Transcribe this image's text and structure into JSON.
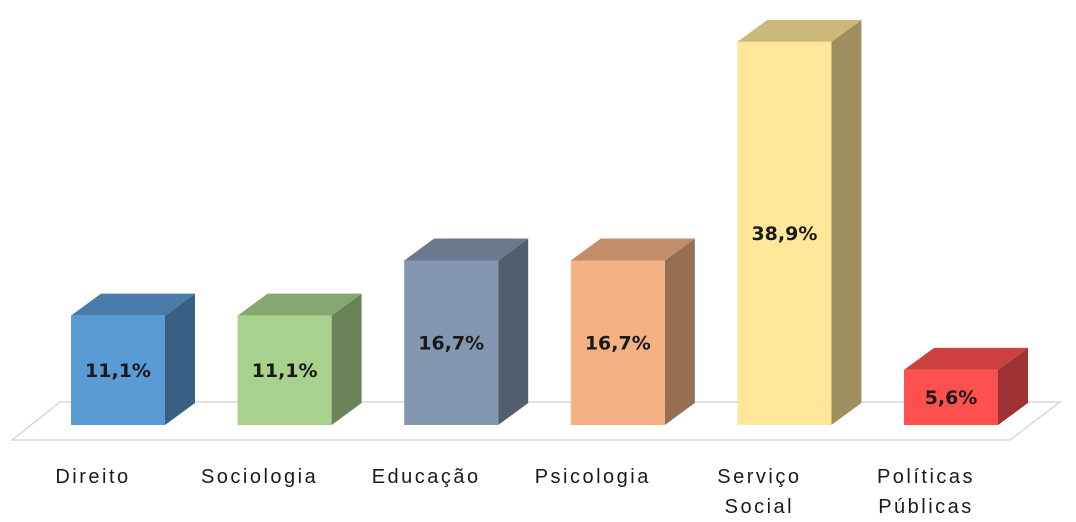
{
  "chart_data": {
    "type": "bar3d",
    "categories": [
      "Direito",
      "Sociologia",
      "Educação",
      "Psicologia",
      "Serviço Social",
      "Políticas Públicas"
    ],
    "values": [
      11.1,
      11.1,
      16.7,
      16.7,
      38.9,
      5.6
    ],
    "value_labels": [
      "11,1%",
      "11,1%",
      "16,7%",
      "16,7%",
      "38,9%",
      "5,6%"
    ],
    "colors": [
      "#5b9bd5",
      "#a9d18e",
      "#8497b0",
      "#f4b183",
      "#ffe699",
      "#ff5050"
    ]
  }
}
